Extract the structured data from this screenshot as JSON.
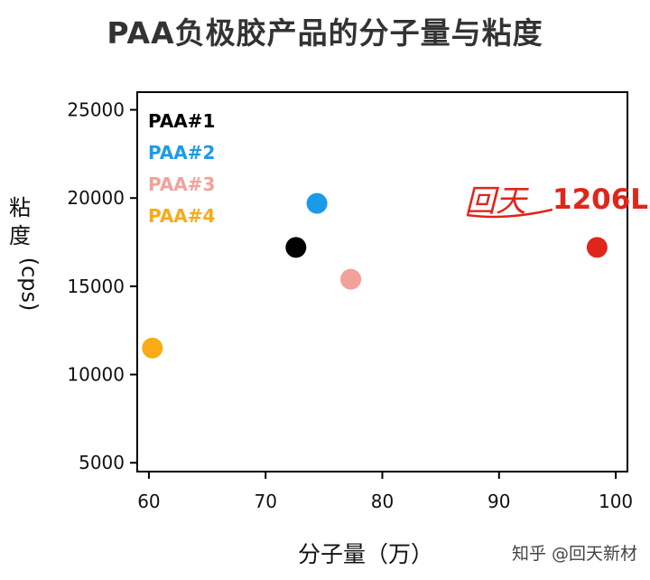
{
  "title": "PAA负极胶产品的分子量与粘度",
  "y_title_chars": [
    "粘",
    "度"
  ],
  "y_title_unit": "(cps)",
  "x_title": "分子量（万）",
  "watermark": "知乎 @回天新材",
  "brand": {
    "logo_text": "回天",
    "label": "1206L",
    "color": "#e0251b"
  },
  "chart_data": {
    "type": "scatter",
    "title": "PAA负极胶产品的分子量与粘度",
    "xlabel": "分子量（万）",
    "ylabel": "粘度 (cps)",
    "xlim": [
      59,
      101
    ],
    "ylim": [
      4500,
      26000
    ],
    "x_ticks": [
      60,
      70,
      80,
      90,
      100
    ],
    "y_ticks": [
      5000,
      10000,
      15000,
      20000,
      25000
    ],
    "grid": false,
    "legend_position": "top-left",
    "series": [
      {
        "name": "PAA#1",
        "color": "#000000",
        "x": [
          72.6
        ],
        "y": [
          17200
        ]
      },
      {
        "name": "PAA#2",
        "color": "#1a9be8",
        "x": [
          74.4
        ],
        "y": [
          19700
        ]
      },
      {
        "name": "PAA#3",
        "color": "#f4a09b",
        "x": [
          77.3
        ],
        "y": [
          15400
        ]
      },
      {
        "name": "PAA#4",
        "color": "#f9aa14",
        "x": [
          60.3
        ],
        "y": [
          11500
        ]
      },
      {
        "name": "1206L",
        "color": "#e0251b",
        "x": [
          98.4
        ],
        "y": [
          17200
        ]
      }
    ]
  }
}
